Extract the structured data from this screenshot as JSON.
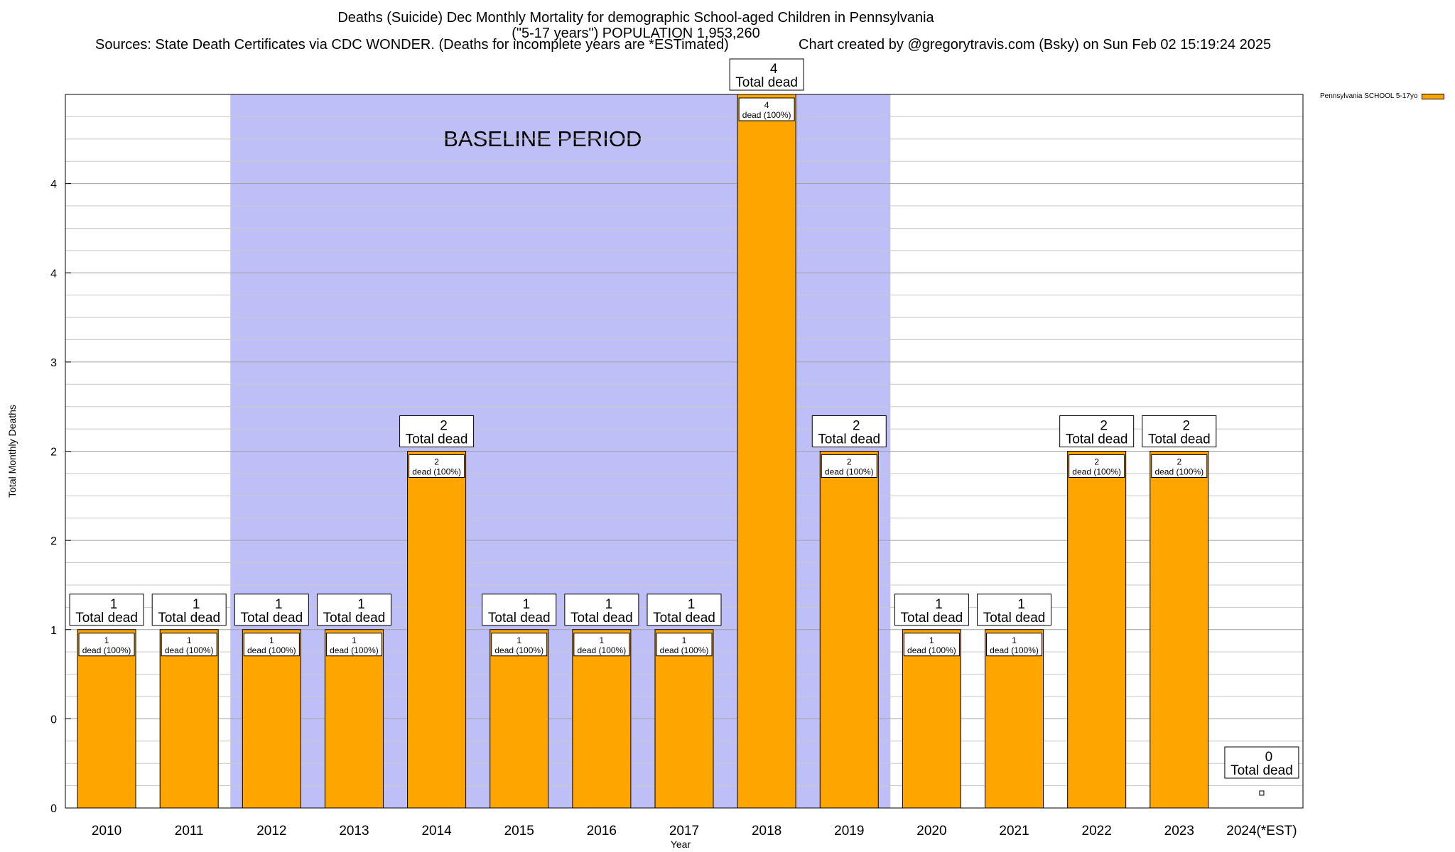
{
  "title": {
    "line1": "Deaths (Suicide) Dec Monthly Mortality for demographic School-aged Children in Pennsylvania",
    "line2": "(\"5-17 years\") POPULATION 1,953,260",
    "sources": "Sources: State Death Certificates via CDC WONDER. (Deaths for incomplete years are *ESTimated)",
    "credit": "Chart created by @gregorytravis.com (Bsky) on Sun Feb 02 15:19:24 2025"
  },
  "legend": {
    "label": "Pennsylvania SCHOOL 5-17yo"
  },
  "colors": {
    "bar": "#ffa500",
    "baseline": "#bfbff8",
    "grid": "#c8c8c8"
  },
  "chart_data": {
    "type": "bar",
    "xlabel": "Year",
    "ylabel": "Total Monthly Deaths",
    "ylim": [
      0,
      4
    ],
    "y_tick_labels": [
      "0",
      "0",
      "1",
      "2",
      "2",
      "3",
      "4",
      "4"
    ],
    "categories": [
      "2010",
      "2011",
      "2012",
      "2013",
      "2014",
      "2015",
      "2016",
      "2017",
      "2018",
      "2019",
      "2020",
      "2021",
      "2022",
      "2023",
      "2024(*EST)"
    ],
    "series": [
      {
        "name": "Pennsylvania SCHOOL 5-17yo",
        "values": [
          1,
          1,
          1,
          1,
          2,
          1,
          1,
          1,
          4,
          2,
          1,
          1,
          2,
          2,
          0
        ]
      }
    ],
    "baseline_period": {
      "label": "BASELINE PERIOD",
      "from": "2012",
      "to": "2019"
    },
    "total_label_value": [
      "1",
      "1",
      "1",
      "1",
      "2",
      "1",
      "1",
      "1",
      "4",
      "2",
      "1",
      "1",
      "2",
      "2",
      "0"
    ],
    "total_label_text": "Total dead",
    "inner_label_value": [
      "1",
      "1",
      "1",
      "1",
      "2",
      "1",
      "1",
      "1",
      "4",
      "2",
      "1",
      "1",
      "2",
      "2",
      ""
    ],
    "inner_label_text": "dead (100%)",
    "legend_position": "top-right",
    "grid": true
  }
}
